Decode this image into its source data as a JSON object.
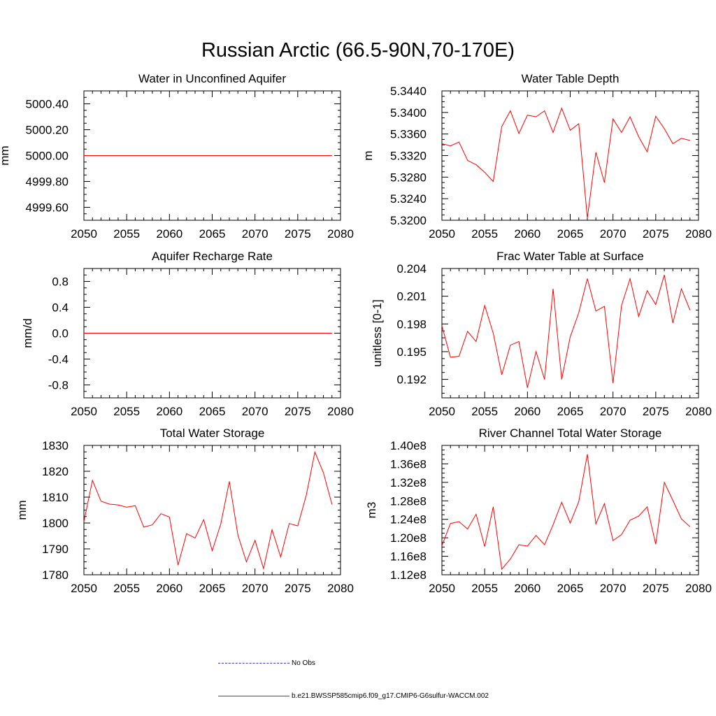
{
  "title": "Russian Arctic (66.5-90N,70-170E)",
  "line_color": "#ff0000",
  "legend": {
    "obs_label": "No Obs",
    "obs_color": "#3a3aa8",
    "run_label": "b.e21.BWSSP585cmip6.f09_g17.CMIP6-G6sulfur-WACCM.002",
    "run_color": "#ff0000"
  },
  "chart_data": [
    {
      "type": "line",
      "title": "Water in Unconfined Aquifer",
      "ylabel": "mm",
      "xlim": [
        2050,
        2080
      ],
      "xticks": [
        "2050",
        "2055",
        "2060",
        "2065",
        "2070",
        "2075",
        "2080"
      ],
      "ylim": [
        4999.5,
        5000.5
      ],
      "yticks": [
        4999.6,
        4999.8,
        5000.0,
        5000.2,
        5000.4
      ],
      "ytick_labels": [
        "4999.60",
        "4999.80",
        "5000.00",
        "5000.20",
        "5000.40"
      ],
      "x": [
        2050,
        2051,
        2052,
        2053,
        2054,
        2055,
        2056,
        2057,
        2058,
        2059,
        2060,
        2061,
        2062,
        2063,
        2064,
        2065,
        2066,
        2067,
        2068,
        2069,
        2070,
        2071,
        2072,
        2073,
        2074,
        2075,
        2076,
        2077,
        2078,
        2079
      ],
      "series": [
        {
          "values": [
            5000,
            5000,
            5000,
            5000,
            5000,
            5000,
            5000,
            5000,
            5000,
            5000,
            5000,
            5000,
            5000,
            5000,
            5000,
            5000,
            5000,
            5000,
            5000,
            5000,
            5000,
            5000,
            5000,
            5000,
            5000,
            5000,
            5000,
            5000,
            5000,
            5000
          ]
        }
      ]
    },
    {
      "type": "line",
      "title": "Water Table Depth",
      "ylabel": "m",
      "xlim": [
        2050,
        2080
      ],
      "xticks": [
        "2050",
        "2055",
        "2060",
        "2065",
        "2070",
        "2075",
        "2080"
      ],
      "ylim": [
        5.32,
        5.344
      ],
      "yticks": [
        5.32,
        5.324,
        5.328,
        5.332,
        5.336,
        5.34,
        5.344
      ],
      "ytick_labels": [
        "5.3200",
        "5.3240",
        "5.3280",
        "5.3320",
        "5.3360",
        "5.3400",
        "5.3440"
      ],
      "x": [
        2050,
        2051,
        2052,
        2053,
        2054,
        2055,
        2056,
        2057,
        2058,
        2059,
        2060,
        2061,
        2062,
        2063,
        2064,
        2065,
        2066,
        2067,
        2068,
        2069,
        2070,
        2071,
        2072,
        2073,
        2074,
        2075,
        2076,
        2077,
        2078,
        2079
      ],
      "series": [
        {
          "values": [
            5.3342,
            5.3338,
            5.3345,
            5.3311,
            5.3303,
            5.3289,
            5.3272,
            5.3374,
            5.3403,
            5.3361,
            5.3395,
            5.3392,
            5.3403,
            5.3363,
            5.3408,
            5.3367,
            5.3379,
            5.3204,
            5.3326,
            5.327,
            5.3388,
            5.3363,
            5.3392,
            5.3355,
            5.3327,
            5.3393,
            5.337,
            5.3342,
            5.3352,
            5.3348
          ]
        }
      ]
    },
    {
      "type": "line",
      "title": "Aquifer Recharge Rate",
      "ylabel": "mm/d",
      "xlim": [
        2050,
        2080
      ],
      "xticks": [
        "2050",
        "2055",
        "2060",
        "2065",
        "2070",
        "2075",
        "2080"
      ],
      "ylim": [
        -1.0,
        1.0
      ],
      "yticks": [
        -0.8,
        -0.4,
        0.0,
        0.4,
        0.8
      ],
      "ytick_labels": [
        "-0.8",
        "-0.4",
        "0.0",
        "0.4",
        "0.8"
      ],
      "x": [
        2050,
        2051,
        2052,
        2053,
        2054,
        2055,
        2056,
        2057,
        2058,
        2059,
        2060,
        2061,
        2062,
        2063,
        2064,
        2065,
        2066,
        2067,
        2068,
        2069,
        2070,
        2071,
        2072,
        2073,
        2074,
        2075,
        2076,
        2077,
        2078,
        2079
      ],
      "series": [
        {
          "values": [
            0,
            0,
            0,
            0,
            0,
            0,
            0,
            0,
            0,
            0,
            0,
            0,
            0,
            0,
            0,
            0,
            0,
            0,
            0,
            0,
            0,
            0,
            0,
            0,
            0,
            0,
            0,
            0,
            0,
            0
          ]
        }
      ]
    },
    {
      "type": "line",
      "title": "Frac Water Table at Surface",
      "ylabel": "unitless [0-1]",
      "xlim": [
        2050,
        2080
      ],
      "xticks": [
        "2050",
        "2055",
        "2060",
        "2065",
        "2070",
        "2075",
        "2080"
      ],
      "ylim": [
        0.19,
        0.204
      ],
      "yticks": [
        0.192,
        0.195,
        0.198,
        0.201,
        0.204
      ],
      "ytick_labels": [
        "0.192",
        "0.195",
        "0.198",
        "0.201",
        "0.204"
      ],
      "x": [
        2050,
        2051,
        2052,
        2053,
        2054,
        2055,
        2056,
        2057,
        2058,
        2059,
        2060,
        2061,
        2062,
        2063,
        2064,
        2065,
        2066,
        2067,
        2068,
        2069,
        2070,
        2071,
        2072,
        2073,
        2074,
        2075,
        2076,
        2077,
        2078,
        2079
      ],
      "series": [
        {
          "values": [
            0.1978,
            0.1944,
            0.1945,
            0.1972,
            0.1961,
            0.2,
            0.197,
            0.1925,
            0.1957,
            0.1961,
            0.1911,
            0.195,
            0.192,
            0.2018,
            0.192,
            0.1966,
            0.1992,
            0.2029,
            0.1994,
            0.1999,
            0.1916,
            0.2,
            0.2029,
            0.1988,
            0.2016,
            0.2001,
            0.2033,
            0.1981,
            0.2018,
            0.1995
          ]
        }
      ]
    },
    {
      "type": "line",
      "title": "Total Water Storage",
      "ylabel": "mm",
      "xlim": [
        2050,
        2080
      ],
      "xticks": [
        "2050",
        "2055",
        "2060",
        "2065",
        "2070",
        "2075",
        "2080"
      ],
      "ylim": [
        1780,
        1830
      ],
      "yticks": [
        1780,
        1790,
        1800,
        1810,
        1820,
        1830
      ],
      "ytick_labels": [
        "1780",
        "1790",
        "1800",
        "1810",
        "1820",
        "1830"
      ],
      "x": [
        2050,
        2051,
        2052,
        2053,
        2054,
        2055,
        2056,
        2057,
        2058,
        2059,
        2060,
        2061,
        2062,
        2063,
        2064,
        2065,
        2066,
        2067,
        2068,
        2069,
        2070,
        2071,
        2072,
        2073,
        2074,
        2075,
        2076,
        2077,
        2078,
        2079
      ],
      "series": [
        {
          "values": [
            1800.5,
            1816.5,
            1808.4,
            1807.3,
            1807.0,
            1806.1,
            1806.7,
            1798.4,
            1799.3,
            1803.6,
            1802.3,
            1783.7,
            1795.9,
            1794.2,
            1801.3,
            1789.3,
            1799.6,
            1816.1,
            1795.4,
            1785.0,
            1793.3,
            1782.4,
            1797.4,
            1786.9,
            1799.8,
            1798.9,
            1810.8,
            1827.4,
            1819.5,
            1807.2
          ]
        }
      ]
    },
    {
      "type": "line",
      "title": "River Channel Total Water Storage",
      "ylabel": "m3",
      "xlim": [
        2050,
        2080
      ],
      "xticks": [
        "2050",
        "2055",
        "2060",
        "2065",
        "2070",
        "2075",
        "2080"
      ],
      "ylim": [
        112000000,
        140000000
      ],
      "yticks": [
        112000000,
        116000000,
        120000000,
        124000000,
        128000000,
        132000000,
        136000000,
        140000000
      ],
      "ytick_labels": [
        "1.12e8",
        "1.16e8",
        "1.20e8",
        "1.24e8",
        "1.28e8",
        "1.32e8",
        "1.36e8",
        "1.40e8"
      ],
      "x": [
        2050,
        2051,
        2052,
        2053,
        2054,
        2055,
        2056,
        2057,
        2058,
        2059,
        2060,
        2061,
        2062,
        2063,
        2064,
        2065,
        2066,
        2067,
        2068,
        2069,
        2070,
        2071,
        2072,
        2073,
        2074,
        2075,
        2076,
        2077,
        2078,
        2079
      ],
      "series": [
        {
          "values": [
            118300000,
            123100000,
            123500000,
            121900000,
            125100000,
            118100000,
            126700000,
            113200000,
            115400000,
            118500000,
            118200000,
            120500000,
            118500000,
            122800000,
            127700000,
            123200000,
            127800000,
            138100000,
            123000000,
            127400000,
            119400000,
            120700000,
            123800000,
            124700000,
            126700000,
            118600000,
            132000000,
            128100000,
            124100000,
            122400000
          ]
        }
      ]
    }
  ]
}
